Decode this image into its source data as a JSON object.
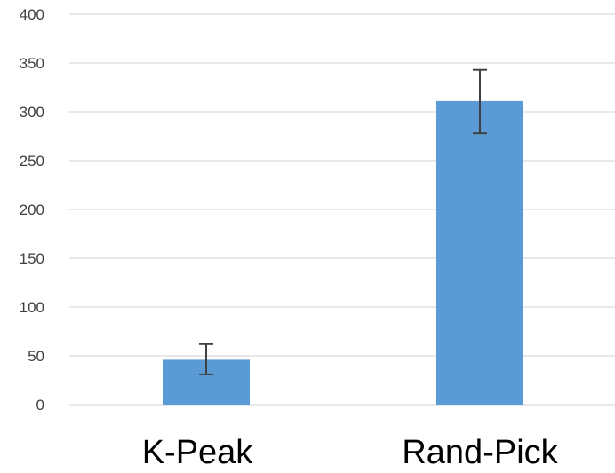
{
  "chart_data": {
    "type": "bar",
    "categories": [
      "K-Peak",
      "Rand-Pick"
    ],
    "values": [
      46,
      311
    ],
    "error_low": [
      31,
      278
    ],
    "error_high": [
      62,
      343
    ],
    "ylim": [
      0,
      400
    ],
    "yticks": [
      0,
      50,
      100,
      150,
      200,
      250,
      300,
      350,
      400
    ],
    "title": "",
    "xlabel": "",
    "ylabel": "",
    "grid": true,
    "bar_color": "#5B9BD5",
    "grid_color": "#D9D9D9",
    "error_color": "#404040"
  }
}
